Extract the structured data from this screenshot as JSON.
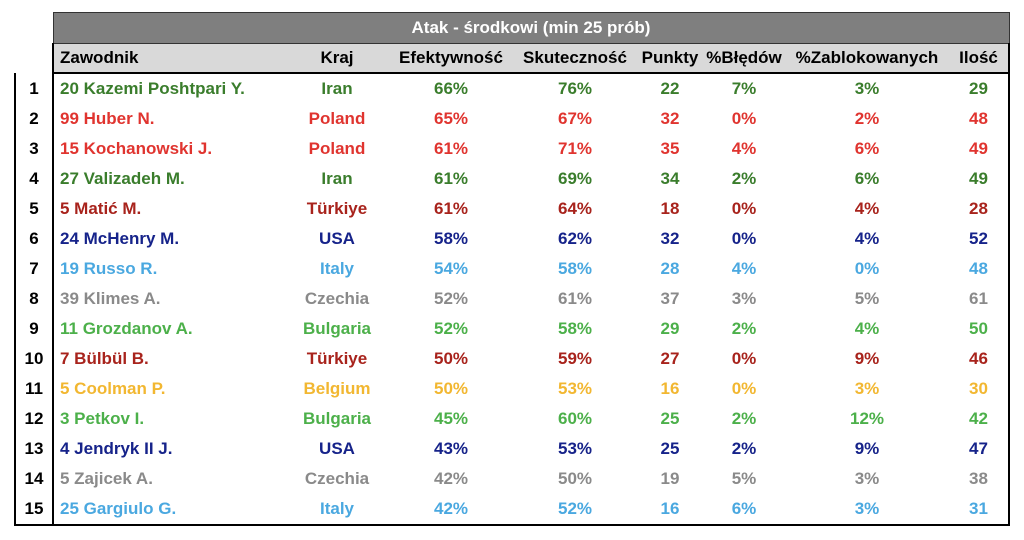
{
  "title": "Atak - środkowi (min 25 prób)",
  "headers": [
    "Zawodnik",
    "Kraj",
    "Efektywność",
    "Skuteczność",
    "Punkty",
    "%Błędów",
    "%Zablokowanych",
    "Ilość"
  ],
  "rows": [
    {
      "rank": "1",
      "name": "20 Kazemi Poshtpari Y.",
      "country": "Iran",
      "eff": "66%",
      "sku": "76%",
      "pts": "22",
      "err": "7%",
      "blk": "3%",
      "cnt": "29",
      "color": "#3a7d2c"
    },
    {
      "rank": "2",
      "name": "99 Huber N.",
      "country": "Poland",
      "eff": "65%",
      "sku": "67%",
      "pts": "32",
      "err": "0%",
      "blk": "2%",
      "cnt": "48",
      "color": "#e0342f"
    },
    {
      "rank": "3",
      "name": "15 Kochanowski J.",
      "country": "Poland",
      "eff": "61%",
      "sku": "71%",
      "pts": "35",
      "err": "4%",
      "blk": "6%",
      "cnt": "49",
      "color": "#e0342f"
    },
    {
      "rank": "4",
      "name": "27 Valizadeh M.",
      "country": "Iran",
      "eff": "61%",
      "sku": "69%",
      "pts": "34",
      "err": "2%",
      "blk": "6%",
      "cnt": "49",
      "color": "#3a7d2c"
    },
    {
      "rank": "5",
      "name": "5 Matić M.",
      "country": "Türkiye",
      "eff": "61%",
      "sku": "64%",
      "pts": "18",
      "err": "0%",
      "blk": "4%",
      "cnt": "28",
      "color": "#a8231c"
    },
    {
      "rank": "6",
      "name": "24 McHenry M.",
      "country": "USA",
      "eff": "58%",
      "sku": "62%",
      "pts": "32",
      "err": "0%",
      "blk": "4%",
      "cnt": "52",
      "color": "#16238a"
    },
    {
      "rank": "7",
      "name": "19 Russo R.",
      "country": "Italy",
      "eff": "54%",
      "sku": "58%",
      "pts": "28",
      "err": "4%",
      "blk": "0%",
      "cnt": "48",
      "color": "#4aa8e0"
    },
    {
      "rank": "8",
      "name": "39 Klimes A.",
      "country": "Czechia",
      "eff": "52%",
      "sku": "61%",
      "pts": "37",
      "err": "3%",
      "blk": "5%",
      "cnt": "61",
      "color": "#8a8a8a"
    },
    {
      "rank": "9",
      "name": "11 Grozdanov A.",
      "country": "Bulgaria",
      "eff": "52%",
      "sku": "58%",
      "pts": "29",
      "err": "2%",
      "blk": "4%",
      "cnt": "50",
      "color": "#4cb04a"
    },
    {
      "rank": "10",
      "name": "7 Bülbül B.",
      "country": "Türkiye",
      "eff": "50%",
      "sku": "59%",
      "pts": "27",
      "err": "0%",
      "blk": "9%",
      "cnt": "46",
      "color": "#a8231c"
    },
    {
      "rank": "11",
      "name": "5 Coolman P.",
      "country": "Belgium",
      "eff": "50%",
      "sku": "53%",
      "pts": "16",
      "err": "0%",
      "blk": "3%",
      "cnt": "30",
      "color": "#f2b731"
    },
    {
      "rank": "12",
      "name": "3 Petkov I.",
      "country": "Bulgaria",
      "eff": "45%",
      "sku": "60%",
      "pts": "25",
      "err": "2%",
      "blk": "12%",
      "cnt": "42",
      "color": "#4cb04a"
    },
    {
      "rank": "13",
      "name": "4 Jendryk II J.",
      "country": "USA",
      "eff": "43%",
      "sku": "53%",
      "pts": "25",
      "err": "2%",
      "blk": "9%",
      "cnt": "47",
      "color": "#16238a"
    },
    {
      "rank": "14",
      "name": "5 Zajicek A.",
      "country": "Czechia",
      "eff": "42%",
      "sku": "50%",
      "pts": "19",
      "err": "5%",
      "blk": "3%",
      "cnt": "38",
      "color": "#8a8a8a"
    },
    {
      "rank": "15",
      "name": "25 Gargiulo G.",
      "country": "Italy",
      "eff": "42%",
      "sku": "52%",
      "pts": "16",
      "err": "6%",
      "blk": "3%",
      "cnt": "31",
      "color": "#4aa8e0"
    }
  ]
}
